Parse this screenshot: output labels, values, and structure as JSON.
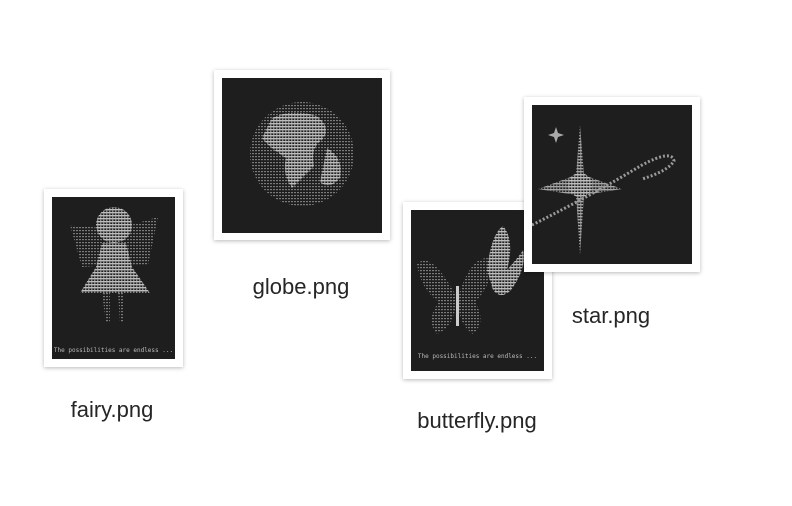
{
  "files": [
    {
      "name": "fairy.png",
      "caption": "The possibilities are endless ..."
    },
    {
      "name": "globe.png"
    },
    {
      "name": "butterfly.png",
      "caption": "The possibilities are endless ..."
    },
    {
      "name": "star.png"
    }
  ]
}
